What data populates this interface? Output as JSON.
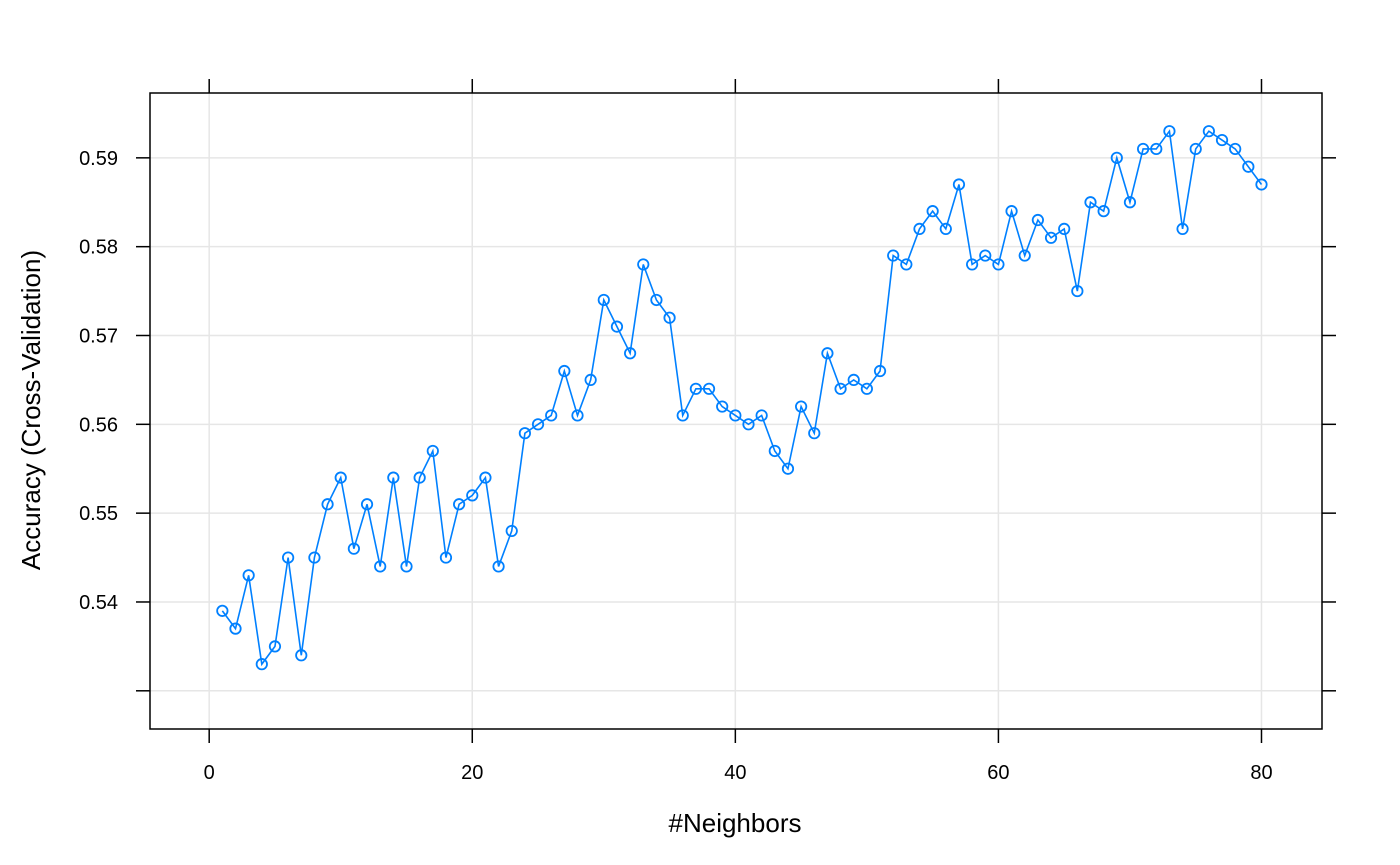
{
  "chart_data": {
    "type": "line",
    "xlabel": "#Neighbors",
    "ylabel": "Accuracy (Cross-Validation)",
    "xlim": [
      -4.5,
      84.6
    ],
    "ylim": [
      0.5257,
      0.5973
    ],
    "xticks": [
      0,
      20,
      40,
      60,
      80
    ],
    "xtick_labels": [
      "0",
      "20",
      "40",
      "60",
      "80"
    ],
    "yticks": [
      0.54,
      0.55,
      0.56,
      0.57,
      0.58,
      0.59
    ],
    "ytick_labels": [
      "0.54",
      "0.55",
      "0.56",
      "0.57",
      "0.58",
      "0.59"
    ],
    "ytick_marks_extra": [
      0.53
    ],
    "grid": true,
    "line_color": "#0080ff",
    "grid_color": "#e6e6e6",
    "x": [
      1,
      2,
      3,
      4,
      5,
      6,
      7,
      8,
      9,
      10,
      11,
      12,
      13,
      14,
      15,
      16,
      17,
      18,
      19,
      20,
      21,
      22,
      23,
      24,
      25,
      26,
      27,
      28,
      29,
      30,
      31,
      32,
      33,
      34,
      35,
      36,
      37,
      38,
      39,
      40,
      41,
      42,
      43,
      44,
      45,
      46,
      47,
      48,
      49,
      50,
      51,
      52,
      53,
      54,
      55,
      56,
      57,
      58,
      59,
      60,
      61,
      62,
      63,
      64,
      65,
      66,
      67,
      68,
      69,
      70,
      71,
      72,
      73,
      74,
      75,
      76,
      77,
      78,
      79,
      80
    ],
    "y": [
      0.539,
      0.537,
      0.543,
      0.533,
      0.535,
      0.545,
      0.534,
      0.545,
      0.551,
      0.554,
      0.546,
      0.551,
      0.544,
      0.554,
      0.544,
      0.554,
      0.557,
      0.545,
      0.551,
      0.552,
      0.554,
      0.544,
      0.548,
      0.559,
      0.56,
      0.561,
      0.566,
      0.561,
      0.565,
      0.574,
      0.571,
      0.568,
      0.578,
      0.574,
      0.572,
      0.561,
      0.564,
      0.564,
      0.562,
      0.561,
      0.56,
      0.561,
      0.557,
      0.555,
      0.562,
      0.559,
      0.568,
      0.564,
      0.565,
      0.564,
      0.566,
      0.579,
      0.578,
      0.582,
      0.584,
      0.582,
      0.587,
      0.578,
      0.579,
      0.578,
      0.584,
      0.579,
      0.583,
      0.581,
      0.582,
      0.575,
      0.585,
      0.584,
      0.59,
      0.585,
      0.591,
      0.591,
      0.593,
      0.582,
      0.591,
      0.593,
      0.592,
      0.591,
      0.589,
      0.587
    ]
  }
}
